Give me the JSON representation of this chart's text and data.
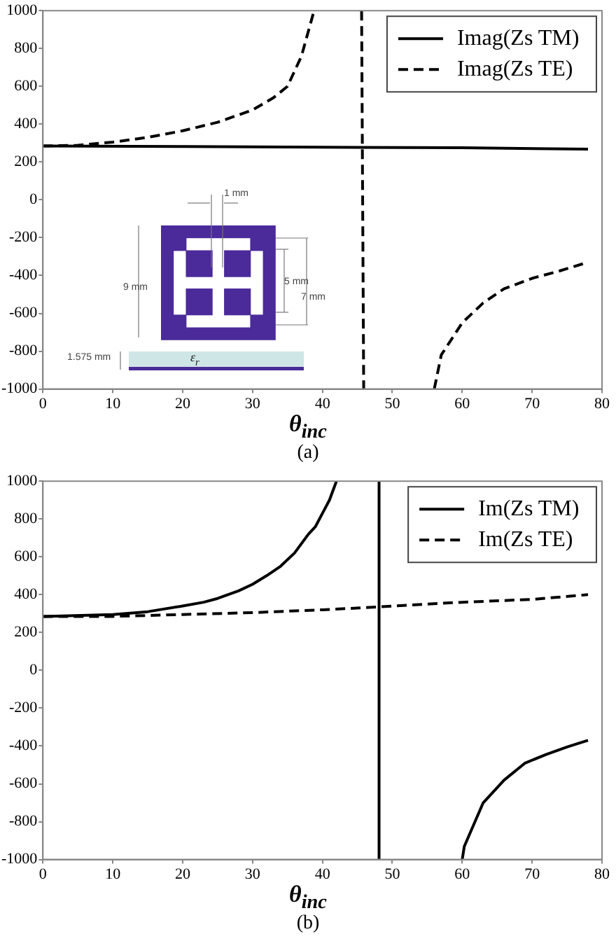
{
  "chart_data": [
    {
      "type": "line",
      "xlabel": "θ$_{inc}$",
      "xlim": [
        0,
        80
      ],
      "xticks": [
        0,
        10,
        20,
        30,
        40,
        50,
        60,
        70,
        80
      ],
      "ylim": [
        -1000,
        1000
      ],
      "yticks": [
        -1000,
        -800,
        -600,
        -400,
        -200,
        0,
        200,
        400,
        600,
        800,
        1000
      ],
      "grid": false,
      "legend": "top right",
      "marker": "none",
      "annotations": [
        "1 mm",
        "5 mm",
        "7 mm",
        "9 mm",
        "1.575 mm",
        "ε$_{r}$",
        "(a)"
      ],
      "series": [
        {
          "name": "Imag(Zs TM)",
          "color": "#000000",
          "line_style": "solid",
          "x": [
            0,
            20,
            40,
            60,
            78
          ],
          "values": [
            285,
            282,
            278,
            275,
            268
          ]
        },
        {
          "name": "Imag(Zs TE)",
          "color": "#000000",
          "line_style": "dashed",
          "x": [
            0,
            5,
            10,
            15,
            20,
            25,
            30,
            33,
            35,
            37,
            38.8,
            42,
            45.6,
            45.9,
            50,
            56,
            57,
            60,
            63,
            66,
            70,
            74,
            78
          ],
          "values": [
            285,
            288,
            305,
            330,
            365,
            410,
            475,
            540,
            600,
            760,
            1000,
            null,
            1000,
            -1000,
            null,
            -1000,
            -820,
            -650,
            -545,
            -470,
            -415,
            -375,
            -330
          ]
        }
      ]
    },
    {
      "type": "line",
      "xlabel": "θ$_{inc}$",
      "xlim": [
        0,
        80
      ],
      "xticks": [
        0,
        10,
        20,
        30,
        40,
        50,
        60,
        70,
        80
      ],
      "ylim": [
        -1000,
        1000
      ],
      "yticks": [
        -1000,
        -800,
        -600,
        -400,
        -200,
        0,
        200,
        400,
        600,
        800,
        1000
      ],
      "grid": false,
      "legend": "top right",
      "marker": "none",
      "annotations": [
        "(b)"
      ],
      "series": [
        {
          "name": "Im(Zs TM)",
          "color": "#000000",
          "line_style": "solid",
          "x": [
            0,
            10,
            15,
            20,
            23,
            25,
            28,
            30,
            32,
            34,
            36,
            38,
            39,
            40,
            41,
            42,
            45,
            48.1,
            48.1,
            52,
            60,
            60.3,
            63,
            66,
            69,
            72,
            75,
            78
          ],
          "values": [
            285,
            295,
            310,
            340,
            360,
            380,
            420,
            455,
            500,
            550,
            620,
            720,
            760,
            830,
            900,
            1000,
            null,
            1000,
            -1000,
            null,
            -1000,
            -930,
            -700,
            -580,
            -490,
            -445,
            -405,
            -370
          ]
        },
        {
          "name": "Im(Zs TE)",
          "color": "#000000",
          "line_style": "dashed",
          "x": [
            0,
            10,
            20,
            30,
            40,
            48,
            50,
            60,
            70,
            78
          ],
          "values": [
            285,
            285,
            295,
            305,
            320,
            335,
            340,
            360,
            375,
            400
          ]
        }
      ]
    }
  ]
}
